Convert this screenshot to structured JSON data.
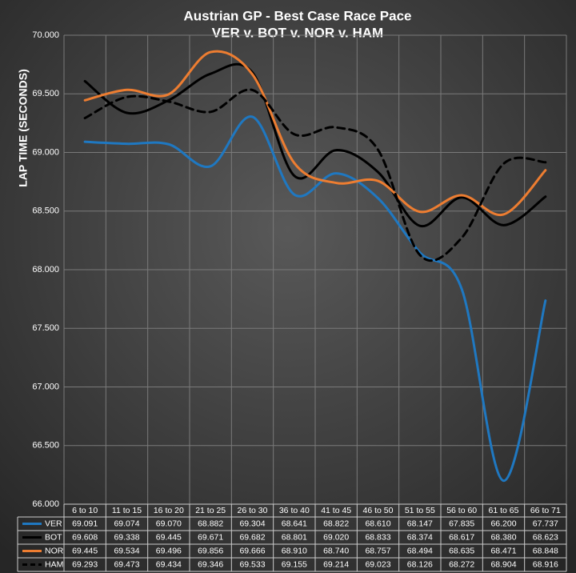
{
  "chart_data": {
    "type": "line",
    "title": "Austrian GP - Best Case Race Pace",
    "subtitle": "VER v. BOT v. NOR v. HAM",
    "y_label": "LAP TIME (SECONDS)",
    "categories": [
      "6 to 10",
      "11 to 15",
      "16 to 20",
      "21 to 25",
      "26 to 30",
      "36 to 40",
      "41 to 45",
      "46 to 50",
      "51 to 55",
      "56 to 60",
      "61 to 65",
      "66 to 71"
    ],
    "ylim": [
      66,
      70
    ],
    "yticks": [
      {
        "value": 66,
        "label": "66.000"
      },
      {
        "value": 66.5,
        "label": "66.500"
      },
      {
        "value": 67,
        "label": "67.000"
      },
      {
        "value": 67.5,
        "label": "67.500"
      },
      {
        "value": 68,
        "label": "68.000"
      },
      {
        "value": 68.5,
        "label": "68.500"
      },
      {
        "value": 69,
        "label": "69.000"
      },
      {
        "value": 69.5,
        "label": "69.500"
      },
      {
        "value": 70,
        "label": "70.000"
      }
    ],
    "grid": true,
    "smooth": true,
    "series": [
      {
        "name": "VER",
        "color": "#1f78c1",
        "dashed": false,
        "values": [
          69.091,
          69.074,
          69.07,
          68.882,
          69.304,
          68.641,
          68.822,
          68.61,
          68.147,
          67.835,
          66.2,
          67.737
        ],
        "value_labels": [
          "69.091",
          "69.074",
          "69.070",
          "68.882",
          "69.304",
          "68.641",
          "68.822",
          "68.610",
          "68.147",
          "67.835",
          "66.200",
          "67.737"
        ]
      },
      {
        "name": "BOT",
        "color": "#000000",
        "dashed": false,
        "values": [
          69.608,
          69.338,
          69.445,
          69.671,
          69.682,
          68.801,
          69.02,
          68.833,
          68.374,
          68.617,
          68.38,
          68.623
        ],
        "value_labels": [
          "69.608",
          "69.338",
          "69.445",
          "69.671",
          "69.682",
          "68.801",
          "69.020",
          "68.833",
          "68.374",
          "68.617",
          "68.380",
          "68.623"
        ]
      },
      {
        "name": "NOR",
        "color": "#ed7d31",
        "dashed": false,
        "values": [
          69.445,
          69.534,
          69.496,
          69.856,
          69.666,
          68.91,
          68.74,
          68.757,
          68.494,
          68.635,
          68.471,
          68.848
        ],
        "value_labels": [
          "69.445",
          "69.534",
          "69.496",
          "69.856",
          "69.666",
          "68.910",
          "68.740",
          "68.757",
          "68.494",
          "68.635",
          "68.471",
          "68.848"
        ]
      },
      {
        "name": "HAM",
        "color": "#000000",
        "dashed": true,
        "values": [
          69.293,
          69.473,
          69.434,
          69.346,
          69.533,
          69.155,
          69.214,
          69.023,
          68.126,
          68.272,
          68.904,
          68.916
        ],
        "value_labels": [
          "69.293",
          "69.473",
          "69.434",
          "69.346",
          "69.533",
          "69.155",
          "69.214",
          "69.023",
          "68.126",
          "68.272",
          "68.904",
          "68.916"
        ]
      }
    ]
  }
}
